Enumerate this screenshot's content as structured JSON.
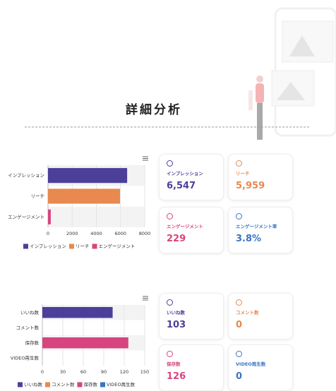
{
  "title": "詳細分析",
  "chart_data": [
    {
      "type": "bar",
      "horizontal": true,
      "categories": [
        "インプレッション",
        "リーチ",
        "エンゲージメント"
      ],
      "values": [
        6547,
        5959,
        229
      ],
      "colors": [
        "#4b3f9a",
        "#e8894f",
        "#d6457f"
      ],
      "xlim": [
        0,
        8000
      ],
      "xticks": [
        0,
        2000,
        4000,
        6000,
        8000
      ],
      "legend": "bottom"
    },
    {
      "type": "bar",
      "horizontal": true,
      "categories": [
        "いいね数",
        "コメント数",
        "保存数",
        "VIDEO再生数"
      ],
      "values": [
        103,
        0,
        126,
        0
      ],
      "colors": [
        "#4b3f9a",
        "#e8894f",
        "#d6457f",
        "#3b74c4"
      ],
      "xlim": [
        0,
        150
      ],
      "xticks": [
        0,
        30,
        60,
        90,
        120,
        150
      ],
      "legend": "bottom"
    }
  ],
  "cards": [
    [
      {
        "label": "インプレッション",
        "value": "6,547",
        "color": "#4b3f9a"
      },
      {
        "label": "リーチ",
        "value": "5,959",
        "color": "#e8894f"
      },
      {
        "label": "エンゲージメント",
        "value": "229",
        "color": "#d6457f"
      },
      {
        "label": "エンゲージメント率",
        "value": "3.8%",
        "color": "#3b74c4"
      }
    ],
    [
      {
        "label": "いいね数",
        "value": "103",
        "color": "#4b3f9a"
      },
      {
        "label": "コメント数",
        "value": "0",
        "color": "#e8894f"
      },
      {
        "label": "保存数",
        "value": "126",
        "color": "#d6457f"
      },
      {
        "label": "VIDEO再生数",
        "value": "0",
        "color": "#3b74c4"
      }
    ]
  ]
}
